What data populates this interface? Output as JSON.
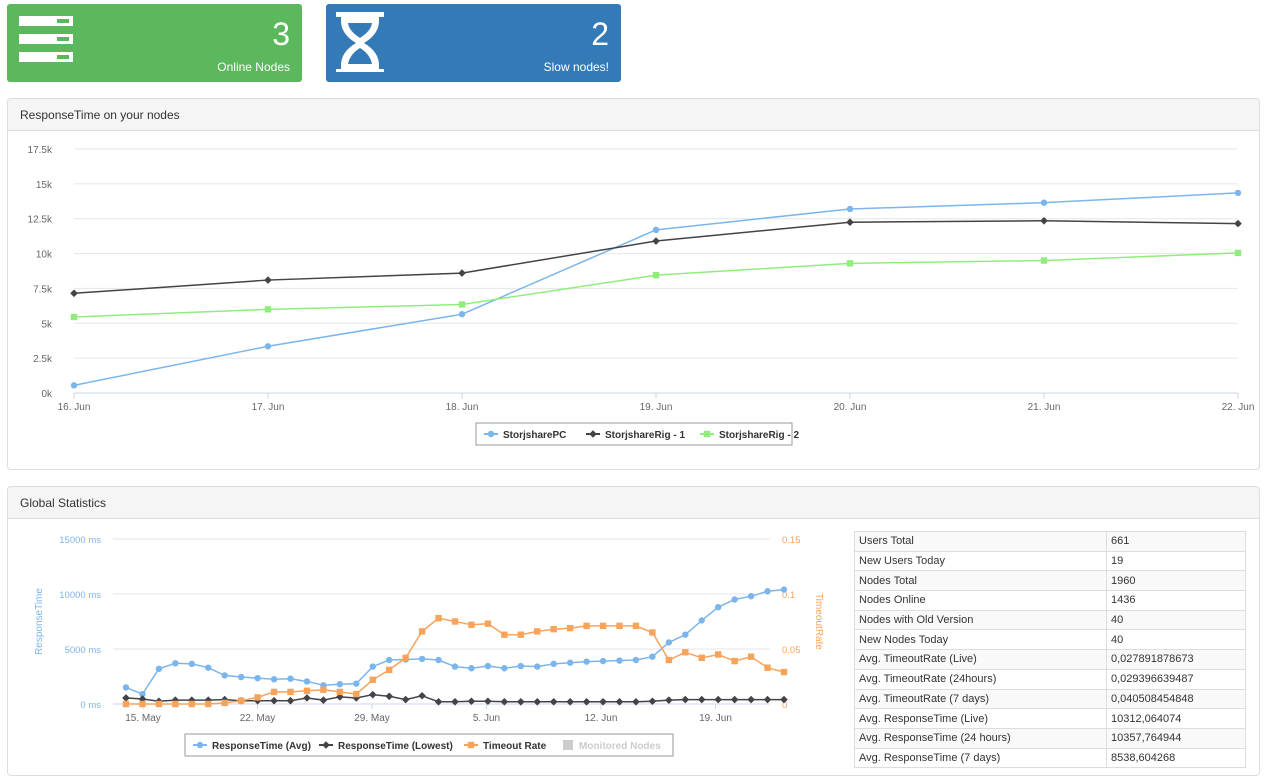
{
  "tiles": {
    "online": {
      "value": "3",
      "label": "Online Nodes",
      "color": "#5cb85c",
      "icon": "server-icon"
    },
    "slow": {
      "value": "2",
      "label": "Slow nodes!",
      "color": "#337ab7",
      "icon": "hourglass-icon"
    }
  },
  "panels": {
    "response_time": {
      "title": "ResponseTime on your nodes"
    },
    "global": {
      "title": "Global Statistics"
    }
  },
  "chart_data": [
    {
      "type": "line",
      "title": "",
      "categories": [
        "16. Jun",
        "17. Jun",
        "18. Jun",
        "19. Jun",
        "20. Jun",
        "21. Jun",
        "22. Jun"
      ],
      "y_ticks": [
        "0k",
        "2.5k",
        "5k",
        "7.5k",
        "10k",
        "12.5k",
        "15k",
        "17.5k"
      ],
      "ylim": [
        0,
        17500
      ],
      "legend": "bottom-center",
      "grid": true,
      "series": [
        {
          "name": "StorjsharePC",
          "color": "#7cb5ec",
          "marker": "circle",
          "values": [
            550,
            3350,
            5650,
            11700,
            13200,
            13650,
            14350
          ]
        },
        {
          "name": "StorjshareRig - 1",
          "color": "#434348",
          "marker": "diamond",
          "values": [
            7150,
            8100,
            8600,
            10900,
            12250,
            12350,
            12150
          ]
        },
        {
          "name": "StorjshareRig - 2",
          "color": "#90ed7d",
          "marker": "square",
          "values": [
            5450,
            6000,
            6350,
            8450,
            9300,
            9500,
            10050
          ]
        }
      ]
    },
    {
      "type": "line",
      "title": "",
      "x_ticks": [
        "15. May",
        "22. May",
        "29. May",
        "5. Jun",
        "12. Jun",
        "19. Jun"
      ],
      "y_left_ticks": [
        "0 ms",
        "5000 ms",
        "10000 ms",
        "15000 ms"
      ],
      "y_left_label": "ResponseTime",
      "y_left_lim": [
        0,
        15000
      ],
      "y_right_ticks": [
        "0",
        "0.05",
        "0.1",
        "0.15"
      ],
      "y_right_label": "TimeoutRate",
      "y_right_lim": [
        0,
        0.15
      ],
      "legend": "bottom-center",
      "grid": true,
      "series": [
        {
          "name": "ResponseTime (Avg)",
          "color": "#7cb5ec",
          "marker": "circle",
          "axis": "left",
          "values": [
            1500,
            900,
            3200,
            3700,
            3650,
            3300,
            2600,
            2450,
            2350,
            2250,
            2300,
            2050,
            1700,
            1800,
            1850,
            3400,
            4000,
            4050,
            4100,
            4000,
            3400,
            3250,
            3450,
            3250,
            3450,
            3400,
            3650,
            3750,
            3850,
            3900,
            3950,
            4000,
            4300,
            5600,
            6300,
            7600,
            8800,
            9500,
            9800,
            10250,
            10400
          ]
        },
        {
          "name": "ResponseTime (Lowest)",
          "color": "#434348",
          "marker": "diamond",
          "axis": "left",
          "values": [
            550,
            450,
            250,
            350,
            350,
            350,
            400,
            300,
            300,
            300,
            300,
            550,
            350,
            650,
            550,
            850,
            700,
            400,
            750,
            200,
            200,
            250,
            250,
            200,
            200,
            200,
            200,
            200,
            200,
            200,
            200,
            200,
            250,
            350,
            400,
            400,
            400,
            400,
            400,
            400,
            400
          ]
        },
        {
          "name": "Timeout Rate",
          "color": "#f7a35c",
          "marker": "square",
          "axis": "right",
          "values": [
            0.0,
            0.0,
            0.0,
            0.0,
            0.0,
            0.0,
            0.001,
            0.003,
            0.006,
            0.011,
            0.011,
            0.012,
            0.013,
            0.011,
            0.009,
            0.022,
            0.031,
            0.042,
            0.066,
            0.078,
            0.075,
            0.072,
            0.073,
            0.063,
            0.063,
            0.066,
            0.068,
            0.069,
            0.071,
            0.071,
            0.071,
            0.071,
            0.065,
            0.04,
            0.047,
            0.042,
            0.045,
            0.039,
            0.043,
            0.033,
            0.029
          ]
        },
        {
          "name": "Monitored Nodes",
          "color": "#cccccc",
          "marker": "square",
          "hidden": true,
          "values": []
        }
      ]
    }
  ],
  "stats": [
    {
      "label": "Users Total",
      "value": "661"
    },
    {
      "label": "New Users Today",
      "value": "19"
    },
    {
      "label": "Nodes Total",
      "value": "1960"
    },
    {
      "label": "Nodes Online",
      "value": "1436"
    },
    {
      "label": "Nodes with Old Version",
      "value": "40"
    },
    {
      "label": "New Nodes Today",
      "value": "40"
    },
    {
      "label": "Avg. TimeoutRate (Live)",
      "value": "0,027891878673"
    },
    {
      "label": "Avg. TimeoutRate (24hours)",
      "value": "0,029396639487"
    },
    {
      "label": "Avg. TimeoutRate (7 days)",
      "value": "0,040508454848"
    },
    {
      "label": "Avg. ResponseTime (Live)",
      "value": "10312,064074"
    },
    {
      "label": "Avg. ResponseTime (24 hours)",
      "value": "10357,764944"
    },
    {
      "label": "Avg. ResponseTime (7 days)",
      "value": "8538,604268"
    }
  ]
}
